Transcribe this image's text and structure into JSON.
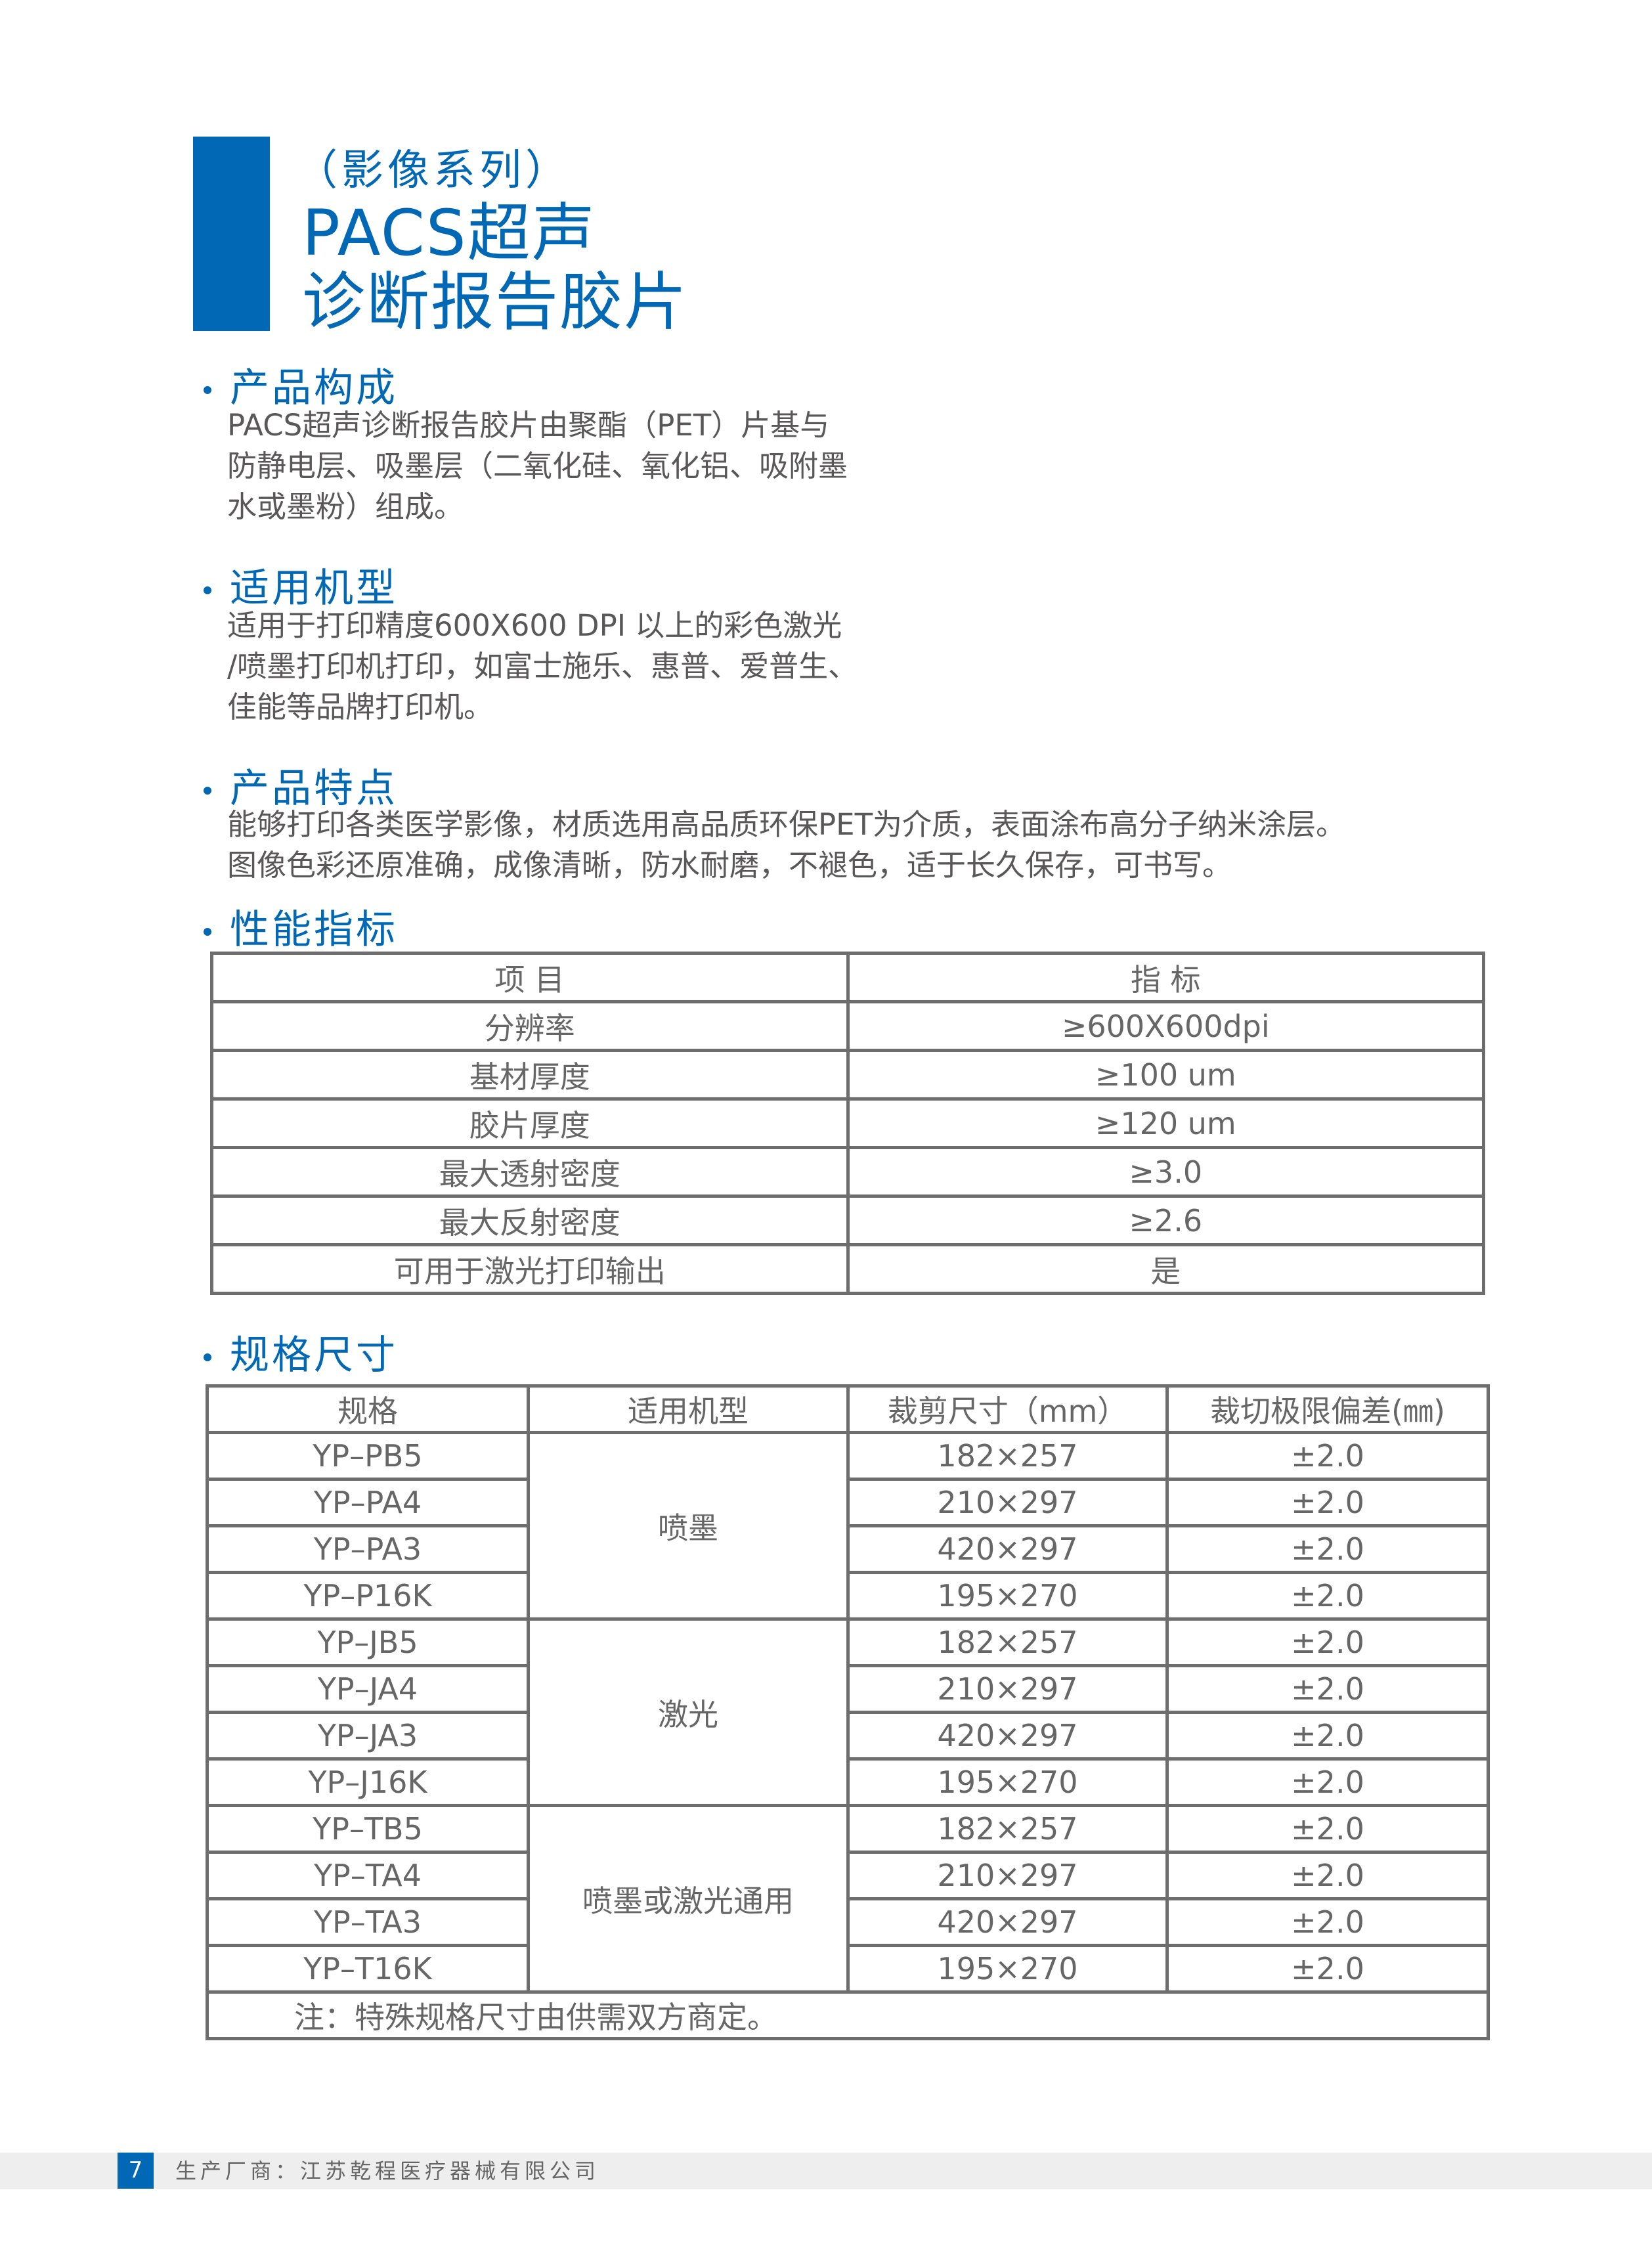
{
  "header": {
    "series": "（影像系列）",
    "title_line1": "PACS超声",
    "title_line2": "诊断报告胶片",
    "accent_color": "#0068b4"
  },
  "sections": {
    "composition": {
      "heading": "产品构成",
      "lines": [
        "PACS超声诊断报告胶片由聚酯（PET）片基与",
        "防静电层、吸墨层（二氧化硅、氧化铝、吸附墨",
        "水或墨粉）组成。"
      ]
    },
    "models": {
      "heading": "适用机型",
      "lines": [
        "适用于打印精度600X600 DPI 以上的彩色激光",
        "/喷墨打印机打印，如富士施乐、惠普、爱普生、",
        "佳能等品牌打印机。"
      ]
    },
    "features": {
      "heading": "产品特点",
      "lines": [
        "能够打印各类医学影像，材质选用高品质环保PET为介质，表面涂布高分子纳米涂层。",
        "图像色彩还原准确，成像清晰，防水耐磨，不褪色，适于长久保存，可书写。"
      ]
    },
    "performance": {
      "heading": "性能指标",
      "headers": [
        "项 目",
        "指 标"
      ],
      "rows": [
        [
          "分辨率",
          "≥600X600dpi"
        ],
        [
          "基材厚度",
          "≥100 um"
        ],
        [
          "胶片厚度",
          "≥120 um"
        ],
        [
          "最大透射密度",
          "≥3.0"
        ],
        [
          "最大反射密度",
          "≥2.6"
        ],
        [
          "可用于激光打印输出",
          "是"
        ]
      ]
    },
    "specs": {
      "heading": "规格尺寸",
      "headers": [
        "规格",
        "适用机型",
        "裁剪尺寸（mm）",
        "裁切极限偏差(㎜)"
      ],
      "groups": [
        {
          "type": "喷墨",
          "rows": [
            [
              "YP–PB5",
              "182×257",
              "±2.0"
            ],
            [
              "YP–PA4",
              "210×297",
              "±2.0"
            ],
            [
              "YP–PA3",
              "420×297",
              "±2.0"
            ],
            [
              "YP–P16K",
              "195×270",
              "±2.0"
            ]
          ]
        },
        {
          "type": "激光",
          "rows": [
            [
              "YP–JB5",
              "182×257",
              "±2.0"
            ],
            [
              "YP–JA4",
              "210×297",
              "±2.0"
            ],
            [
              "YP–JA3",
              "420×297",
              "±2.0"
            ],
            [
              "YP–J16K",
              "195×270",
              "±2.0"
            ]
          ]
        },
        {
          "type": "喷墨或激光通用",
          "rows": [
            [
              "YP–TB5",
              "182×257",
              "±2.0"
            ],
            [
              "YP–TA4",
              "210×297",
              "±2.0"
            ],
            [
              "YP–TA3",
              "420×297",
              "±2.0"
            ],
            [
              "YP–T16K",
              "195×270",
              "±2.0"
            ]
          ]
        }
      ],
      "note": "注：特殊规格尺寸由供需双方商定。"
    }
  },
  "footer": {
    "page_number": "7",
    "manufacturer": "生产厂商：江苏乾程医疗器械有限公司"
  }
}
